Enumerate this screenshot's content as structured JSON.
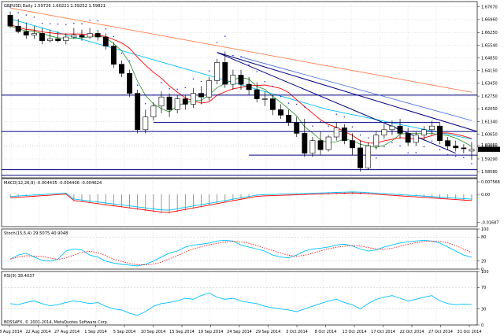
{
  "chart_data": [
    {
      "type": "candlestick",
      "title": "GBPUSD,Daily 1.59726 1.60221 1.59252 1.59821",
      "price_axis_ticks": [
        "1.67670",
        "1.66960",
        "1.66250",
        "1.65540",
        "1.64850",
        "1.64150",
        "1.63450",
        "1.62750",
        "1.62050",
        "1.61340",
        "1.60650",
        "1.60060",
        "1.59950",
        "1.59290",
        "1.58580"
      ],
      "last_price_tag": "1.59821",
      "ylim": [
        1.5825,
        1.6795
      ],
      "candles": [
        {
          "o": 1.672,
          "h": 1.674,
          "l": 1.665,
          "c": 1.666
        },
        {
          "o": 1.666,
          "h": 1.67,
          "l": 1.662,
          "c": 1.663
        },
        {
          "o": 1.663,
          "h": 1.668,
          "l": 1.659,
          "c": 1.661
        },
        {
          "o": 1.661,
          "h": 1.666,
          "l": 1.659,
          "c": 1.662
        },
        {
          "o": 1.662,
          "h": 1.665,
          "l": 1.656,
          "c": 1.658
        },
        {
          "o": 1.658,
          "h": 1.664,
          "l": 1.657,
          "c": 1.659
        },
        {
          "o": 1.659,
          "h": 1.663,
          "l": 1.657,
          "c": 1.658
        },
        {
          "o": 1.658,
          "h": 1.662,
          "l": 1.656,
          "c": 1.66
        },
        {
          "o": 1.66,
          "h": 1.665,
          "l": 1.659,
          "c": 1.661
        },
        {
          "o": 1.661,
          "h": 1.664,
          "l": 1.658,
          "c": 1.66
        },
        {
          "o": 1.66,
          "h": 1.665,
          "l": 1.659,
          "c": 1.662
        },
        {
          "o": 1.662,
          "h": 1.664,
          "l": 1.658,
          "c": 1.66
        },
        {
          "o": 1.66,
          "h": 1.662,
          "l": 1.653,
          "c": 1.655
        },
        {
          "o": 1.655,
          "h": 1.657,
          "l": 1.643,
          "c": 1.645
        },
        {
          "o": 1.645,
          "h": 1.647,
          "l": 1.638,
          "c": 1.64
        },
        {
          "o": 1.64,
          "h": 1.642,
          "l": 1.627,
          "c": 1.629
        },
        {
          "o": 1.629,
          "h": 1.631,
          "l": 1.607,
          "c": 1.609
        },
        {
          "o": 1.609,
          "h": 1.62,
          "l": 1.607,
          "c": 1.616
        },
        {
          "o": 1.616,
          "h": 1.624,
          "l": 1.614,
          "c": 1.622
        },
        {
          "o": 1.622,
          "h": 1.63,
          "l": 1.618,
          "c": 1.627
        },
        {
          "o": 1.627,
          "h": 1.629,
          "l": 1.616,
          "c": 1.62
        },
        {
          "o": 1.62,
          "h": 1.628,
          "l": 1.618,
          "c": 1.626
        },
        {
          "o": 1.626,
          "h": 1.628,
          "l": 1.62,
          "c": 1.623
        },
        {
          "o": 1.623,
          "h": 1.632,
          "l": 1.621,
          "c": 1.629
        },
        {
          "o": 1.629,
          "h": 1.633,
          "l": 1.623,
          "c": 1.627
        },
        {
          "o": 1.627,
          "h": 1.638,
          "l": 1.625,
          "c": 1.636
        },
        {
          "o": 1.636,
          "h": 1.648,
          "l": 1.634,
          "c": 1.646
        },
        {
          "o": 1.646,
          "h": 1.652,
          "l": 1.632,
          "c": 1.634
        },
        {
          "o": 1.634,
          "h": 1.642,
          "l": 1.631,
          "c": 1.639
        },
        {
          "o": 1.639,
          "h": 1.642,
          "l": 1.631,
          "c": 1.634
        },
        {
          "o": 1.634,
          "h": 1.638,
          "l": 1.628,
          "c": 1.631
        },
        {
          "o": 1.631,
          "h": 1.635,
          "l": 1.624,
          "c": 1.626
        },
        {
          "o": 1.626,
          "h": 1.63,
          "l": 1.622,
          "c": 1.626
        },
        {
          "o": 1.626,
          "h": 1.628,
          "l": 1.617,
          "c": 1.62
        },
        {
          "o": 1.62,
          "h": 1.623,
          "l": 1.615,
          "c": 1.617
        },
        {
          "o": 1.617,
          "h": 1.62,
          "l": 1.611,
          "c": 1.613
        },
        {
          "o": 1.613,
          "h": 1.616,
          "l": 1.605,
          "c": 1.607
        },
        {
          "o": 1.607,
          "h": 1.615,
          "l": 1.594,
          "c": 1.596
        },
        {
          "o": 1.596,
          "h": 1.605,
          "l": 1.594,
          "c": 1.603
        },
        {
          "o": 1.603,
          "h": 1.608,
          "l": 1.595,
          "c": 1.598
        },
        {
          "o": 1.598,
          "h": 1.606,
          "l": 1.597,
          "c": 1.605
        },
        {
          "o": 1.605,
          "h": 1.613,
          "l": 1.603,
          "c": 1.61
        },
        {
          "o": 1.61,
          "h": 1.612,
          "l": 1.601,
          "c": 1.603
        },
        {
          "o": 1.603,
          "h": 1.607,
          "l": 1.595,
          "c": 1.599
        },
        {
          "o": 1.599,
          "h": 1.603,
          "l": 1.586,
          "c": 1.588
        },
        {
          "o": 1.588,
          "h": 1.602,
          "l": 1.587,
          "c": 1.6
        },
        {
          "o": 1.6,
          "h": 1.608,
          "l": 1.598,
          "c": 1.606
        },
        {
          "o": 1.606,
          "h": 1.612,
          "l": 1.604,
          "c": 1.609
        },
        {
          "o": 1.609,
          "h": 1.614,
          "l": 1.606,
          "c": 1.611
        },
        {
          "o": 1.611,
          "h": 1.615,
          "l": 1.604,
          "c": 1.607
        },
        {
          "o": 1.607,
          "h": 1.61,
          "l": 1.6,
          "c": 1.602
        },
        {
          "o": 1.602,
          "h": 1.608,
          "l": 1.6,
          "c": 1.606
        },
        {
          "o": 1.606,
          "h": 1.611,
          "l": 1.603,
          "c": 1.609
        },
        {
          "o": 1.609,
          "h": 1.614,
          "l": 1.606,
          "c": 1.611
        },
        {
          "o": 1.611,
          "h": 1.613,
          "l": 1.601,
          "c": 1.603
        },
        {
          "o": 1.603,
          "h": 1.605,
          "l": 1.598,
          "c": 1.6
        },
        {
          "o": 1.6,
          "h": 1.603,
          "l": 1.597,
          "c": 1.599
        },
        {
          "o": 1.599,
          "h": 1.601,
          "l": 1.596,
          "c": 1.5985
        },
        {
          "o": 1.59726,
          "h": 1.60221,
          "l": 1.59252,
          "c": 1.59821
        }
      ],
      "horizontal_levels": [
        1.628,
        1.613,
        1.608,
        1.595,
        1.587
      ],
      "indicator_lines": {
        "ma_fast_color": "#008000",
        "ma_mid_color": "#ff0000",
        "ma_slow_color": "#00bfff",
        "ma_long_color": "#ff7f50",
        "parabolic_sar_color": "#0000ff",
        "channel_color": "#000080"
      },
      "x_labels": [
        "18 Aug 2014",
        "22 Aug 2014",
        "27 Aug 2014",
        "1 Sep 2014",
        "5 Sep 2014",
        "10 Sep 2014",
        "15 Sep 2014",
        "19 Sep 2014",
        "24 Sep 2014",
        "29 Sep 2014",
        "3 Oct 2014",
        "8 Oct 2014",
        "13 Oct 2014",
        "17 Oct 2014",
        "22 Oct 2014",
        "27 Oct 2014",
        "31 Oct 2014"
      ]
    },
    {
      "type": "histogram",
      "title": "MACD(12,26,9) -0.004435 -0.004406 -0.004624",
      "axis_ticks": [
        "0.007568",
        "0.00",
        "-0.01687"
      ],
      "ylim": [
        -0.0195,
        0.0095
      ]
    },
    {
      "type": "line",
      "title": "Stoch(15,5,4) 29.5075 40.9048",
      "axis_ticks": [
        "100",
        "80",
        "20",
        "0"
      ],
      "ylim": [
        0,
        100
      ]
    },
    {
      "type": "line",
      "title": "RSI(9) 38.4037",
      "axis_ticks": [
        "100",
        "70",
        "30",
        "0"
      ],
      "ylim": [
        0,
        100
      ]
    }
  ],
  "copyright": "BOSSAFX, © 2001-2014, MetaQuotes Software Corp."
}
